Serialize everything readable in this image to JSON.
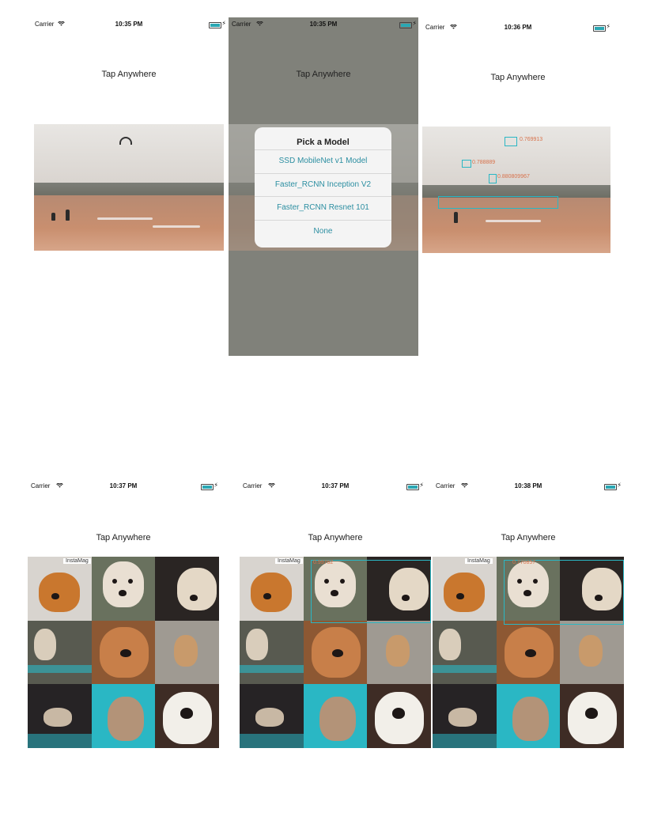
{
  "screens": [
    {
      "status": {
        "carrier": "Carrier",
        "time": "10:35 PM"
      },
      "title": "Tap Anywhere"
    },
    {
      "status": {
        "carrier": "Carrier",
        "time": "10:35 PM"
      },
      "title": "Tap Anywhere",
      "alert": {
        "title": "Pick a Model",
        "options": [
          "SSD MobileNet v1 Model",
          "Faster_RCNN Inception V2",
          "Faster_RCNN Resnet 101",
          "None"
        ]
      }
    },
    {
      "status": {
        "carrier": "Carrier",
        "time": "10:36 PM"
      },
      "title": "Tap Anywhere",
      "detections": [
        "0.769913",
        "0.788889",
        "0.880809967"
      ]
    },
    {
      "status": {
        "carrier": "Carrier",
        "time": "10:37 PM"
      },
      "title": "Tap Anywhere",
      "photo_label": "InstaMag"
    },
    {
      "status": {
        "carrier": "Carrier",
        "time": "10:37 PM"
      },
      "title": "Tap Anywhere",
      "photo_label": "InstaMag",
      "detections": [
        "0.99762"
      ]
    },
    {
      "status": {
        "carrier": "Carrier",
        "time": "10:38 PM"
      },
      "title": "Tap Anywhere",
      "photo_label": "InstaMag",
      "detections": [
        "0.770857"
      ]
    }
  ],
  "colors": {
    "accent": "#2b8ea1",
    "detection_box": "#2ab7c4",
    "detection_label": "#d8734d",
    "overlay": "#80817a"
  },
  "icons": {
    "wifi": "wifi-icon",
    "battery": "battery-icon",
    "charging": "bolt-icon"
  }
}
